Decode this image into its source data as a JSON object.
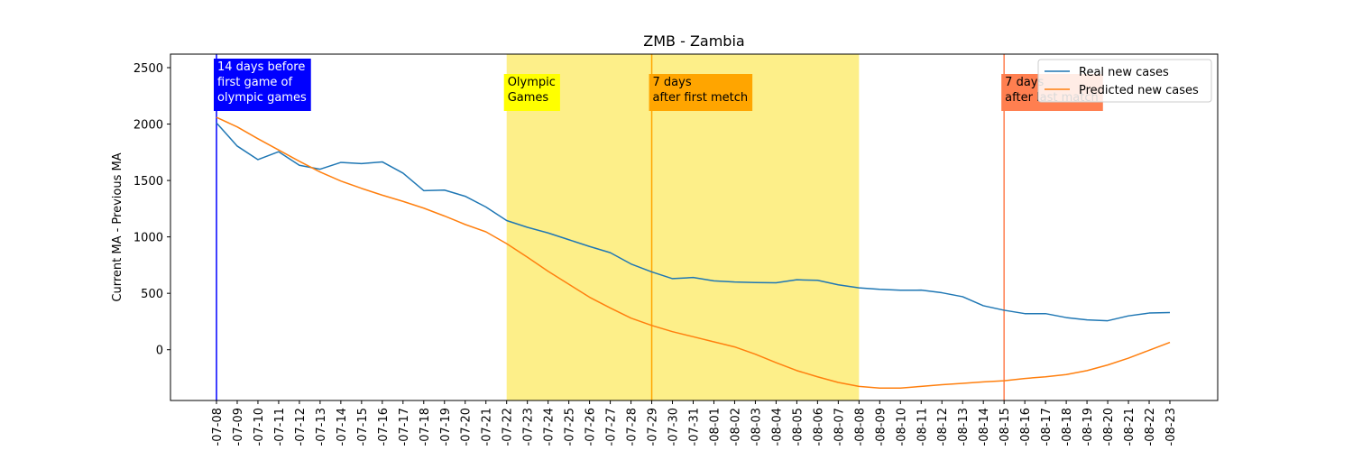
{
  "chart_data": {
    "type": "line",
    "title": "ZMB - Zambia",
    "xlabel": "",
    "ylabel": "Current MA - Previous MA",
    "ylim": [
      -450,
      2620
    ],
    "yticks": [
      0,
      500,
      1000,
      1500,
      2000,
      2500
    ],
    "grid": false,
    "legend_position": "top-right",
    "x": [
      "2021-07-08",
      "2021-07-09",
      "2021-07-10",
      "2021-07-11",
      "2021-07-12",
      "2021-07-13",
      "2021-07-14",
      "2021-07-15",
      "2021-07-16",
      "2021-07-17",
      "2021-07-18",
      "2021-07-19",
      "2021-07-20",
      "2021-07-21",
      "2021-07-22",
      "2021-07-23",
      "2021-07-24",
      "2021-07-25",
      "2021-07-26",
      "2021-07-27",
      "2021-07-28",
      "2021-07-29",
      "2021-07-30",
      "2021-07-31",
      "2021-08-01",
      "2021-08-02",
      "2021-08-03",
      "2021-08-04",
      "2021-08-05",
      "2021-08-06",
      "2021-08-07",
      "2021-08-08",
      "2021-08-09",
      "2021-08-10",
      "2021-08-11",
      "2021-08-12",
      "2021-08-13",
      "2021-08-14",
      "2021-08-15",
      "2021-08-16",
      "2021-08-17",
      "2021-08-18",
      "2021-08-19",
      "2021-08-20",
      "2021-08-21",
      "2021-08-22",
      "2021-08-23"
    ],
    "tick_labels": [
      "-07-08",
      "-07-09",
      "-07-10",
      "-07-11",
      "-07-12",
      "-07-13",
      "-07-14",
      "-07-15",
      "-07-16",
      "-07-17",
      "-07-18",
      "-07-19",
      "-07-20",
      "-07-21",
      "-07-22",
      "-07-23",
      "-07-24",
      "-07-25",
      "-07-26",
      "-07-27",
      "-07-28",
      "-07-29",
      "-07-30",
      "-07-31",
      "-08-01",
      "-08-02",
      "-08-03",
      "-08-04",
      "-08-05",
      "-08-06",
      "-08-07",
      "-08-08",
      "-08-09",
      "-08-10",
      "-08-11",
      "-08-12",
      "-08-13",
      "-08-14",
      "-08-15",
      "-08-16",
      "-08-17",
      "-08-18",
      "-08-19",
      "-08-20",
      "-08-21",
      "-08-22",
      "-08-23"
    ],
    "series": [
      {
        "name": "Real new cases",
        "color": "#1f77b4",
        "values": [
          2010,
          1805,
          1685,
          1755,
          1635,
          1600,
          1660,
          1650,
          1665,
          1565,
          1410,
          1415,
          1360,
          1265,
          1145,
          1085,
          1035,
          975,
          915,
          860,
          760,
          690,
          630,
          640,
          610,
          600,
          595,
          593,
          620,
          615,
          575,
          548,
          535,
          527,
          528,
          505,
          470,
          390,
          350,
          320,
          320,
          285,
          265,
          257,
          300,
          325,
          330
        ]
      },
      {
        "name": "Predicted new cases",
        "color": "#ff7f0e",
        "values": [
          2060,
          1975,
          1870,
          1770,
          1670,
          1575,
          1495,
          1430,
          1370,
          1315,
          1255,
          1185,
          1110,
          1045,
          940,
          820,
          695,
          580,
          465,
          370,
          280,
          215,
          160,
          115,
          70,
          25,
          -40,
          -115,
          -185,
          -240,
          -290,
          -325,
          -340,
          -340,
          -325,
          -310,
          -298,
          -285,
          -275,
          -255,
          -240,
          -220,
          -185,
          -135,
          -75,
          -5,
          65
        ]
      }
    ],
    "shaded_region": {
      "x_start": "2021-07-22",
      "x_end": "2021-08-08",
      "color": "#fdef89"
    },
    "vertical_lines": [
      {
        "x": "2021-07-08",
        "color": "#0000ff"
      },
      {
        "x": "2021-07-29",
        "color": "#ffa500"
      },
      {
        "x": "2021-08-15",
        "color": "#ff7f50"
      }
    ],
    "annotations": [
      {
        "x": "2021-07-08",
        "lines": [
          "14 days before",
          "first game of",
          "olympic games"
        ],
        "bg": "#0000ff",
        "fg": "#ffffff"
      },
      {
        "x": "2021-07-22",
        "lines": [
          "Olympic",
          "Games"
        ],
        "bg": "#ffff00",
        "fg": "#000000"
      },
      {
        "x": "2021-07-29",
        "lines": [
          "7 days",
          "after first metch"
        ],
        "bg": "#ffa500",
        "fg": "#000000"
      },
      {
        "x": "2021-08-15",
        "lines": [
          "7 days",
          "after last match"
        ],
        "bg": "#ff7f50",
        "fg": "#000000"
      }
    ]
  }
}
